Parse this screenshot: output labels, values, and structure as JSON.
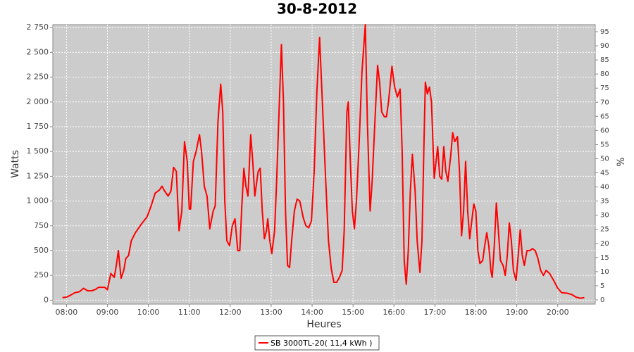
{
  "chart_data": {
    "type": "line",
    "title": "30-8-2012",
    "x_label": "Heures",
    "y_label": "Watts",
    "y2_label": "%",
    "x": [
      "07:54",
      "08:00",
      "08:06",
      "08:12",
      "08:19",
      "08:25",
      "08:31",
      "08:37",
      "08:43",
      "08:47",
      "08:56",
      "09:00",
      "09:05",
      "09:10",
      "09:13",
      "09:16",
      "09:20",
      "09:24",
      "09:27",
      "09:31",
      "09:35",
      "09:41",
      "09:49",
      "09:58",
      "10:04",
      "10:10",
      "10:16",
      "10:20",
      "10:24",
      "10:29",
      "10:33",
      "10:37",
      "10:41",
      "10:45",
      "10:49",
      "10:53",
      "10:57",
      "11:00",
      "11:02",
      "11:06",
      "11:10",
      "11:15",
      "11:18",
      "11:22",
      "11:26",
      "11:30",
      "11:35",
      "11:38",
      "11:42",
      "11:46",
      "11:49",
      "11:52",
      "11:55",
      "11:59",
      "12:03",
      "12:07",
      "12:11",
      "12:14",
      "12:17",
      "12:20",
      "12:23",
      "12:26",
      "12:30",
      "12:33",
      "12:36",
      "12:41",
      "12:44",
      "12:47",
      "12:50",
      "12:53",
      "12:55",
      "12:58",
      "13:01",
      "13:05",
      "13:08",
      "13:12",
      "13:15",
      "13:18",
      "13:21",
      "13:24",
      "13:27",
      "13:30",
      "13:34",
      "13:38",
      "13:42",
      "13:47",
      "13:51",
      "13:55",
      "13:59",
      "14:03",
      "14:07",
      "14:11",
      "14:15",
      "14:20",
      "14:24",
      "14:28",
      "14:32",
      "14:36",
      "14:40",
      "14:44",
      "14:47",
      "14:51",
      "14:53",
      "14:56",
      "14:59",
      "15:02",
      "15:05",
      "15:09",
      "15:13",
      "15:18",
      "15:21",
      "15:25",
      "15:28",
      "15:32",
      "15:36",
      "15:39",
      "15:42",
      "15:46",
      "15:49",
      "15:52",
      "15:57",
      "16:01",
      "16:05",
      "16:09",
      "16:12",
      "16:15",
      "16:18",
      "16:21",
      "16:24",
      "16:27",
      "16:31",
      "16:34",
      "16:38",
      "16:41",
      "16:44",
      "16:46",
      "16:49",
      "16:52",
      "16:55",
      "16:59",
      "17:04",
      "17:07",
      "17:10",
      "17:13",
      "17:16",
      "17:19",
      "17:23",
      "17:26",
      "17:29",
      "17:33",
      "17:36",
      "17:39",
      "17:42",
      "17:45",
      "17:48",
      "17:51",
      "17:54",
      "17:57",
      "18:00",
      "18:03",
      "18:06",
      "18:10",
      "18:13",
      "18:16",
      "18:19",
      "18:22",
      "18:24",
      "18:27",
      "18:30",
      "18:33",
      "18:36",
      "18:40",
      "18:43",
      "18:46",
      "18:49",
      "18:52",
      "18:55",
      "18:59",
      "19:02",
      "19:05",
      "19:08",
      "19:11",
      "19:15",
      "19:19",
      "19:23",
      "19:27",
      "19:31",
      "19:35",
      "19:39",
      "19:43",
      "19:48",
      "19:54",
      "20:00",
      "20:06",
      "20:14",
      "20:21",
      "20:27",
      "20:33",
      "20:39"
    ],
    "series": [
      {
        "name": "SB 3000TL-20( 11,4 kWh )",
        "color": "#ff0000",
        "values": [
          25,
          30,
          50,
          75,
          85,
          120,
          95,
          95,
          110,
          130,
          130,
          105,
          270,
          230,
          350,
          500,
          220,
          300,
          420,
          450,
          600,
          680,
          760,
          840,
          950,
          1080,
          1110,
          1150,
          1100,
          1050,
          1100,
          1340,
          1300,
          700,
          900,
          1600,
          1400,
          920,
          920,
          1400,
          1500,
          1670,
          1500,
          1150,
          1050,
          720,
          900,
          950,
          1800,
          2180,
          1900,
          1000,
          600,
          550,
          750,
          820,
          500,
          500,
          950,
          1330,
          1150,
          1050,
          1670,
          1400,
          1050,
          1300,
          1330,
          900,
          620,
          700,
          820,
          600,
          470,
          700,
          1200,
          2000,
          2580,
          2000,
          900,
          350,
          330,
          600,
          900,
          1020,
          1000,
          830,
          750,
          730,
          800,
          1300,
          2100,
          2650,
          2000,
          1200,
          600,
          320,
          180,
          180,
          230,
          300,
          700,
          1900,
          2000,
          1400,
          900,
          720,
          1000,
          1600,
          2300,
          2780,
          1800,
          900,
          1200,
          1800,
          2370,
          2200,
          1900,
          1850,
          1850,
          2000,
          2360,
          2150,
          2050,
          2130,
          1500,
          400,
          160,
          500,
          1100,
          1470,
          1100,
          600,
          280,
          600,
          1600,
          2200,
          2080,
          2150,
          2000,
          1230,
          1550,
          1250,
          1220,
          1550,
          1300,
          1200,
          1450,
          1690,
          1600,
          1650,
          1300,
          650,
          900,
          1400,
          900,
          620,
          800,
          970,
          900,
          500,
          370,
          400,
          550,
          680,
          550,
          300,
          230,
          550,
          980,
          700,
          400,
          350,
          250,
          450,
          780,
          600,
          300,
          200,
          450,
          710,
          450,
          350,
          500,
          500,
          520,
          500,
          420,
          300,
          250,
          300,
          270,
          200,
          120,
          75,
          70,
          55,
          30,
          20,
          25
        ]
      }
    ],
    "xlim": [
      "07:40",
      "20:55"
    ],
    "xticks": [
      "08:00",
      "09:00",
      "10:00",
      "11:00",
      "12:00",
      "13:00",
      "14:00",
      "15:00",
      "16:00",
      "17:00",
      "18:00",
      "19:00",
      "20:00"
    ],
    "ylim": [
      -40,
      2780
    ],
    "yticks": [
      0,
      250,
      500,
      750,
      {
        "value": 1000,
        "label": "1 000"
      },
      {
        "value": 1250,
        "label": "1 250"
      },
      {
        "value": 1500,
        "label": "1 500"
      },
      {
        "value": 1750,
        "label": "1 750"
      },
      {
        "value": 2000,
        "label": "2 000"
      },
      {
        "value": 2250,
        "label": "2 250"
      },
      {
        "value": 2500,
        "label": "2 500"
      },
      {
        "value": 2750,
        "label": "2 750"
      }
    ],
    "y2lim": [
      -1.5,
      97.5
    ],
    "y2ticks": [
      0,
      5,
      10,
      15,
      20,
      25,
      30,
      35,
      40,
      45,
      50,
      55,
      60,
      65,
      70,
      75,
      80,
      85,
      90,
      95
    ],
    "grid": true,
    "background": "#cccccc",
    "legend": "bottom"
  }
}
